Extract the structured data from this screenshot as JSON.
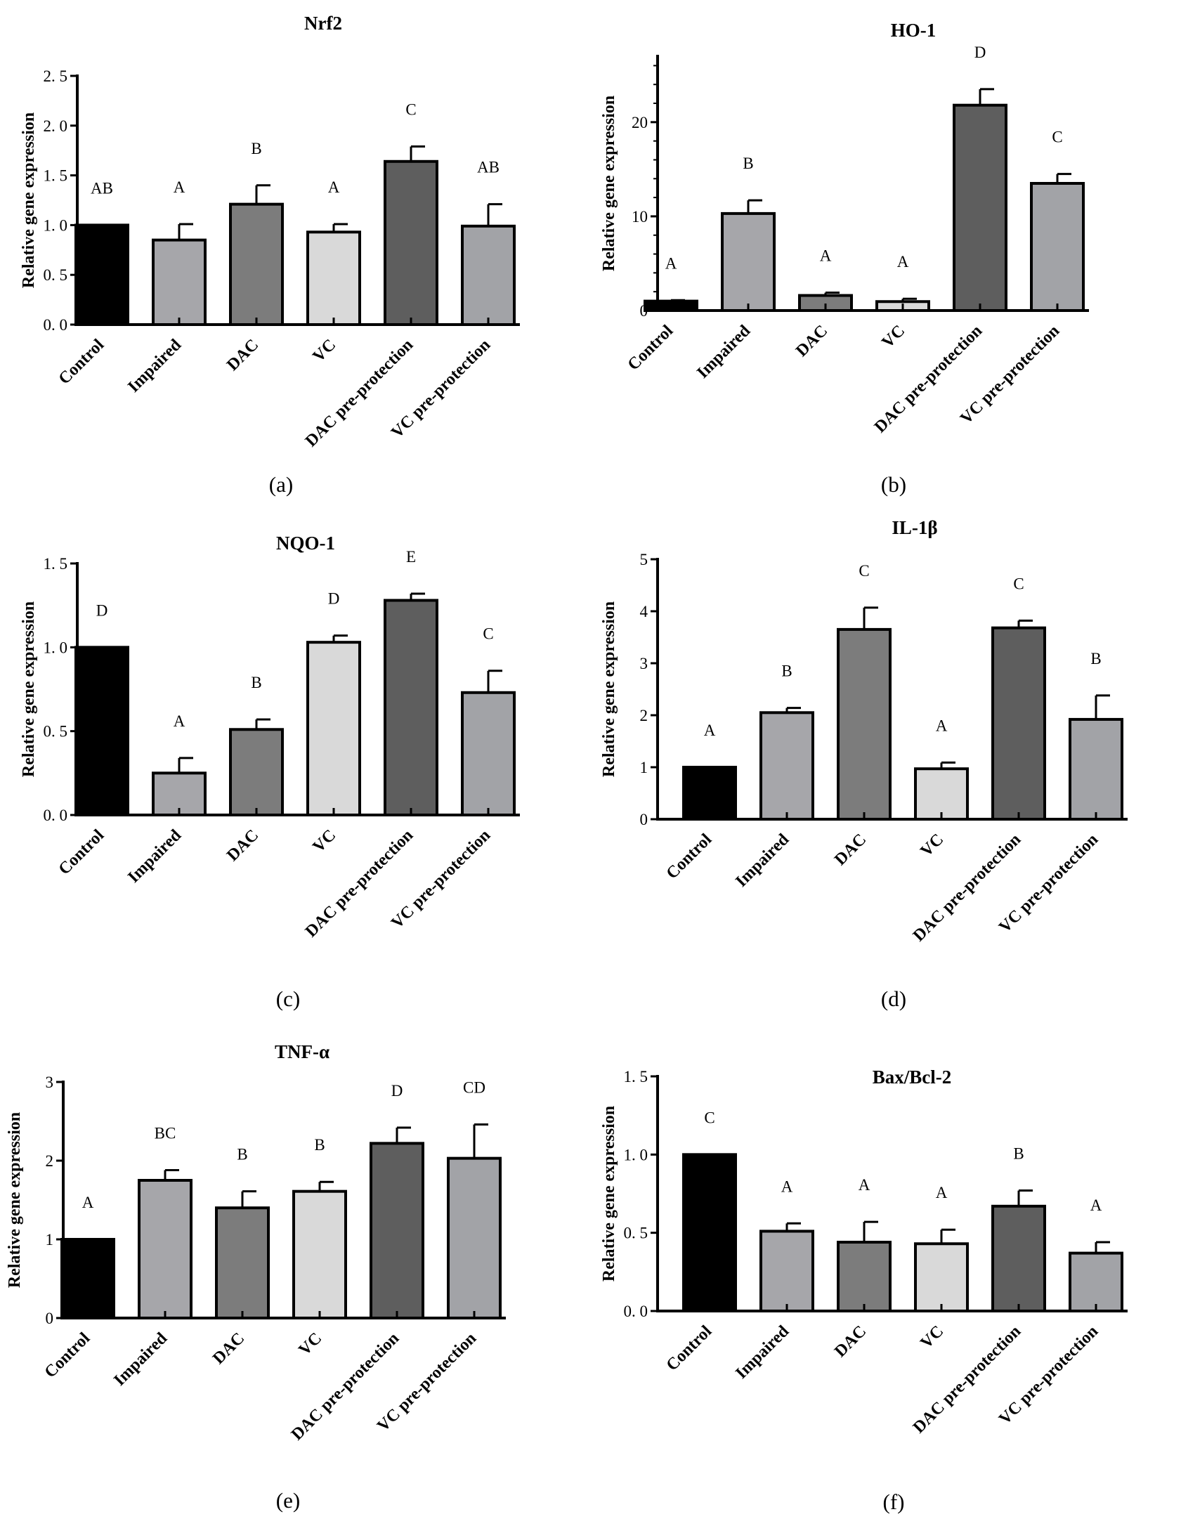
{
  "bar_colors": [
    "#000000",
    "#a6a6aa",
    "#7c7c7c",
    "#d9d9d9",
    "#5e5e5e",
    "#a2a3a7"
  ],
  "chart_data": [
    {
      "type": "bar",
      "panel_label": "(a)",
      "title": "Nrf2",
      "xlabel": "",
      "ylabel": "Relative gene expression",
      "categories": [
        "Control",
        "Impaired",
        "DAC",
        "VC",
        "DAC pre-protection",
        "VC pre-protection"
      ],
      "values": [
        1.0,
        0.85,
        1.21,
        0.93,
        1.64,
        0.99
      ],
      "errors": [
        0.0,
        0.16,
        0.19,
        0.08,
        0.15,
        0.22
      ],
      "significance": [
        "AB",
        "A",
        "B",
        "A",
        "C",
        "AB"
      ],
      "ylim": [
        0,
        2.5
      ],
      "yticks": [
        0,
        0.5,
        1,
        1.5,
        2,
        2.5
      ],
      "yticklabels": [
        "0. 0",
        "0. 5",
        "1. 0",
        "1. 5",
        "2. 0",
        "2. 5"
      ],
      "grid": false
    },
    {
      "type": "bar",
      "panel_label": "(b)",
      "title": "HO-1",
      "xlabel": "",
      "ylabel": "Relative gene expression",
      "categories": [
        "Control",
        "Impaired",
        "DAC",
        "VC",
        "DAC pre-protection",
        "VC pre-protection"
      ],
      "values": [
        1.0,
        10.3,
        1.6,
        0.95,
        21.8,
        13.5
      ],
      "errors": [
        0.1,
        1.4,
        0.3,
        0.3,
        1.7,
        1.0
      ],
      "significance": [
        "A",
        "B",
        "A",
        "A",
        "D",
        "C"
      ],
      "ylim": [
        0,
        27
      ],
      "yticks": [
        0,
        10,
        20
      ],
      "yticklabels": [
        "0",
        "10",
        "20"
      ],
      "grid": false
    },
    {
      "type": "bar",
      "panel_label": "(c)",
      "title": "NQO-1",
      "xlabel": "",
      "ylabel": "Relative gene expression",
      "categories": [
        "Control",
        "Impaired",
        "DAC",
        "VC",
        "DAC pre-protection",
        "VC pre-protection"
      ],
      "values": [
        1.0,
        0.25,
        0.51,
        1.03,
        1.28,
        0.73
      ],
      "errors": [
        0.0,
        0.09,
        0.06,
        0.04,
        0.04,
        0.13
      ],
      "significance": [
        "D",
        "A",
        "B",
        "D",
        "E",
        "C"
      ],
      "ylim": [
        0,
        1.5
      ],
      "yticks": [
        0,
        0.5,
        1,
        1.5
      ],
      "yticklabels": [
        "0. 0",
        "0. 5",
        "1. 0",
        "1. 5"
      ],
      "grid": false
    },
    {
      "type": "bar",
      "panel_label": "(d)",
      "title": "IL-1β",
      "xlabel": "",
      "ylabel": "Relative gene expression",
      "categories": [
        "Control",
        "Impaired",
        "DAC",
        "VC",
        "DAC pre-protection",
        "VC pre-protection"
      ],
      "values": [
        1.0,
        2.05,
        3.65,
        0.97,
        3.68,
        1.92
      ],
      "errors": [
        0.0,
        0.09,
        0.42,
        0.12,
        0.14,
        0.46
      ],
      "significance": [
        "A",
        "B",
        "C",
        "A",
        "C",
        "B"
      ],
      "ylim": [
        0,
        5
      ],
      "yticks": [
        0,
        1,
        2,
        3,
        4,
        5
      ],
      "yticklabels": [
        "0",
        "1",
        "2",
        "3",
        "4",
        "5"
      ],
      "grid": false
    },
    {
      "type": "bar",
      "panel_label": "(e)",
      "title": "TNF-α",
      "xlabel": "",
      "ylabel": "Relative gene expression",
      "categories": [
        "Control",
        "Impaired",
        "DAC",
        "VC",
        "DAC pre-protection",
        "VC pre-protection"
      ],
      "values": [
        1.0,
        1.75,
        1.4,
        1.61,
        2.22,
        2.03
      ],
      "errors": [
        0.0,
        0.13,
        0.21,
        0.12,
        0.2,
        0.43
      ],
      "significance": [
        "A",
        "BC",
        "B",
        "B",
        "D",
        "CD"
      ],
      "ylim": [
        0,
        3
      ],
      "yticks": [
        0,
        1,
        2,
        3
      ],
      "yticklabels": [
        "0",
        "1",
        "2",
        "3"
      ],
      "grid": false
    },
    {
      "type": "bar",
      "panel_label": "(f)",
      "title": "Bax/Bcl-2",
      "xlabel": "",
      "ylabel": "Relative gene expression",
      "categories": [
        "Control",
        "Impaired",
        "DAC",
        "VC",
        "DAC pre-protection",
        "VC pre-protection"
      ],
      "values": [
        1.0,
        0.51,
        0.44,
        0.43,
        0.67,
        0.37
      ],
      "errors": [
        0.0,
        0.05,
        0.13,
        0.09,
        0.1,
        0.07
      ],
      "significance": [
        "C",
        "A",
        "A",
        "A",
        "B",
        "A"
      ],
      "ylim": [
        0,
        1.5
      ],
      "yticks": [
        0,
        0.5,
        1,
        1.5
      ],
      "yticklabels": [
        "0. 0",
        "0. 5",
        "1. 0",
        "1. 5"
      ],
      "grid": false
    }
  ]
}
